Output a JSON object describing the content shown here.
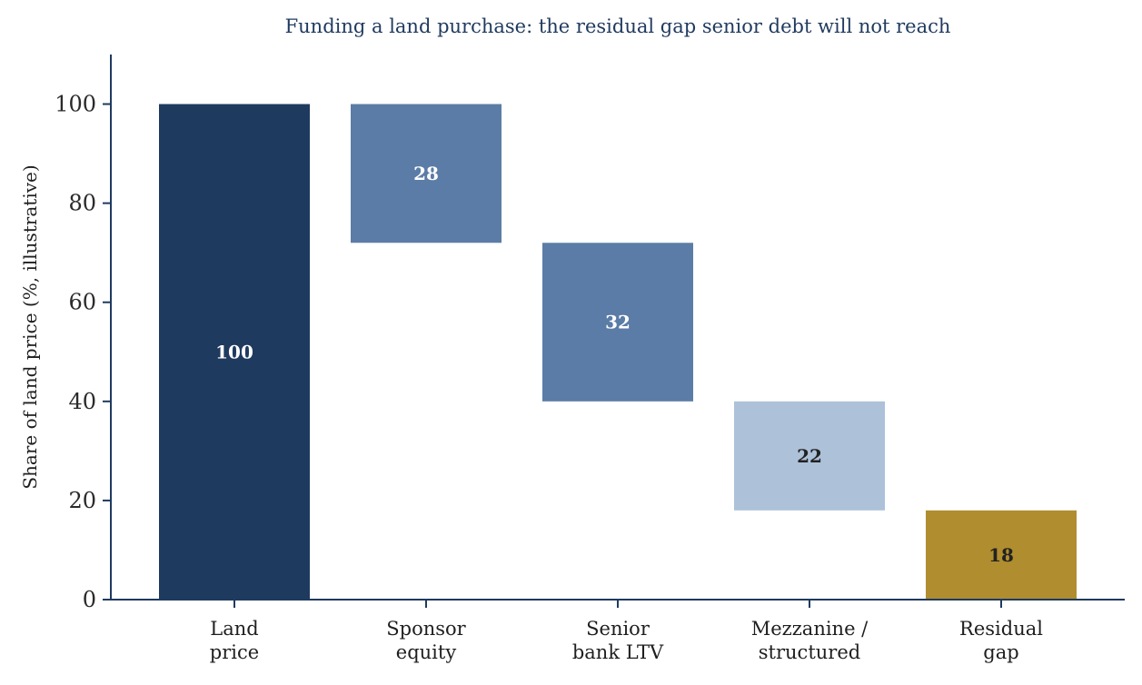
{
  "chart_data": {
    "type": "bar",
    "subtype": "waterfall",
    "title": "Funding a land purchase: the residual gap senior debt will not reach",
    "xlabel": "",
    "ylabel": "Share of land price (%, illustrative)",
    "ylim": [
      0,
      110
    ],
    "yticks": [
      0,
      20,
      40,
      60,
      80,
      100
    ],
    "grid": false,
    "categories": [
      [
        "Land",
        "price"
      ],
      [
        "Sponsor",
        "equity"
      ],
      [
        "Senior",
        "bank LTV"
      ],
      [
        "Mezzanine /",
        "structured"
      ],
      [
        "Residual",
        "gap"
      ]
    ],
    "bars": [
      {
        "base": 0,
        "top": 100,
        "label": "100",
        "color": "#1f3a5f",
        "label_color": "#ffffff"
      },
      {
        "base": 72,
        "top": 100,
        "label": "28",
        "color": "#5b7ca6",
        "label_color": "#ffffff"
      },
      {
        "base": 40,
        "top": 72,
        "label": "32",
        "color": "#5b7ca6",
        "label_color": "#ffffff"
      },
      {
        "base": 18,
        "top": 40,
        "label": "22",
        "color": "#adc1d9",
        "label_color": "#222222"
      },
      {
        "base": 0,
        "top": 18,
        "label": "18",
        "color": "#b08d2e",
        "label_color": "#222222"
      }
    ],
    "axis_color": "#1f3a5f"
  }
}
